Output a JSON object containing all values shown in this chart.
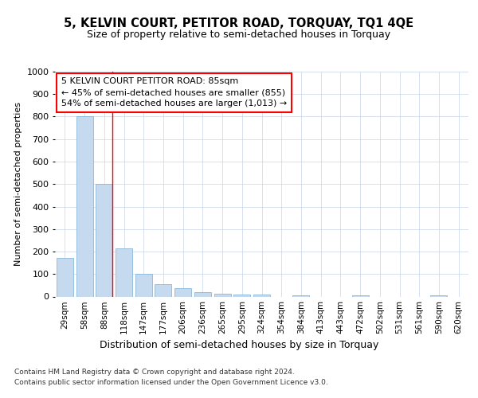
{
  "title": "5, KELVIN COURT, PETITOR ROAD, TORQUAY, TQ1 4QE",
  "subtitle": "Size of property relative to semi-detached houses in Torquay",
  "xlabel": "Distribution of semi-detached houses by size in Torquay",
  "ylabel": "Number of semi-detached properties",
  "categories": [
    "29sqm",
    "58sqm",
    "88sqm",
    "118sqm",
    "147sqm",
    "177sqm",
    "206sqm",
    "236sqm",
    "265sqm",
    "295sqm",
    "324sqm",
    "354sqm",
    "384sqm",
    "413sqm",
    "443sqm",
    "472sqm",
    "502sqm",
    "531sqm",
    "561sqm",
    "590sqm",
    "620sqm"
  ],
  "values": [
    170,
    800,
    500,
    215,
    100,
    55,
    38,
    18,
    12,
    10,
    8,
    0,
    7,
    0,
    0,
    7,
    0,
    0,
    0,
    7,
    0
  ],
  "bar_color": "#c5d9ef",
  "bar_edge_color": "#7aafd4",
  "vline_index": 2,
  "annotation_lines": [
    "5 KELVIN COURT PETITOR ROAD: 85sqm",
    "← 45% of semi-detached houses are smaller (855)",
    "54% of semi-detached houses are larger (1,013) →"
  ],
  "ylim": [
    0,
    1000
  ],
  "yticks": [
    0,
    100,
    200,
    300,
    400,
    500,
    600,
    700,
    800,
    900,
    1000
  ],
  "footer_line1": "Contains HM Land Registry data © Crown copyright and database right 2024.",
  "footer_line2": "Contains public sector information licensed under the Open Government Licence v3.0.",
  "bg_color": "#ffffff",
  "grid_color": "#c8d4e8",
  "title_fontsize": 10.5,
  "subtitle_fontsize": 9,
  "ylabel_fontsize": 8,
  "xtick_fontsize": 7.5,
  "ytick_fontsize": 8,
  "xlabel_fontsize": 9,
  "ann_fontsize": 8,
  "footer_fontsize": 6.5
}
